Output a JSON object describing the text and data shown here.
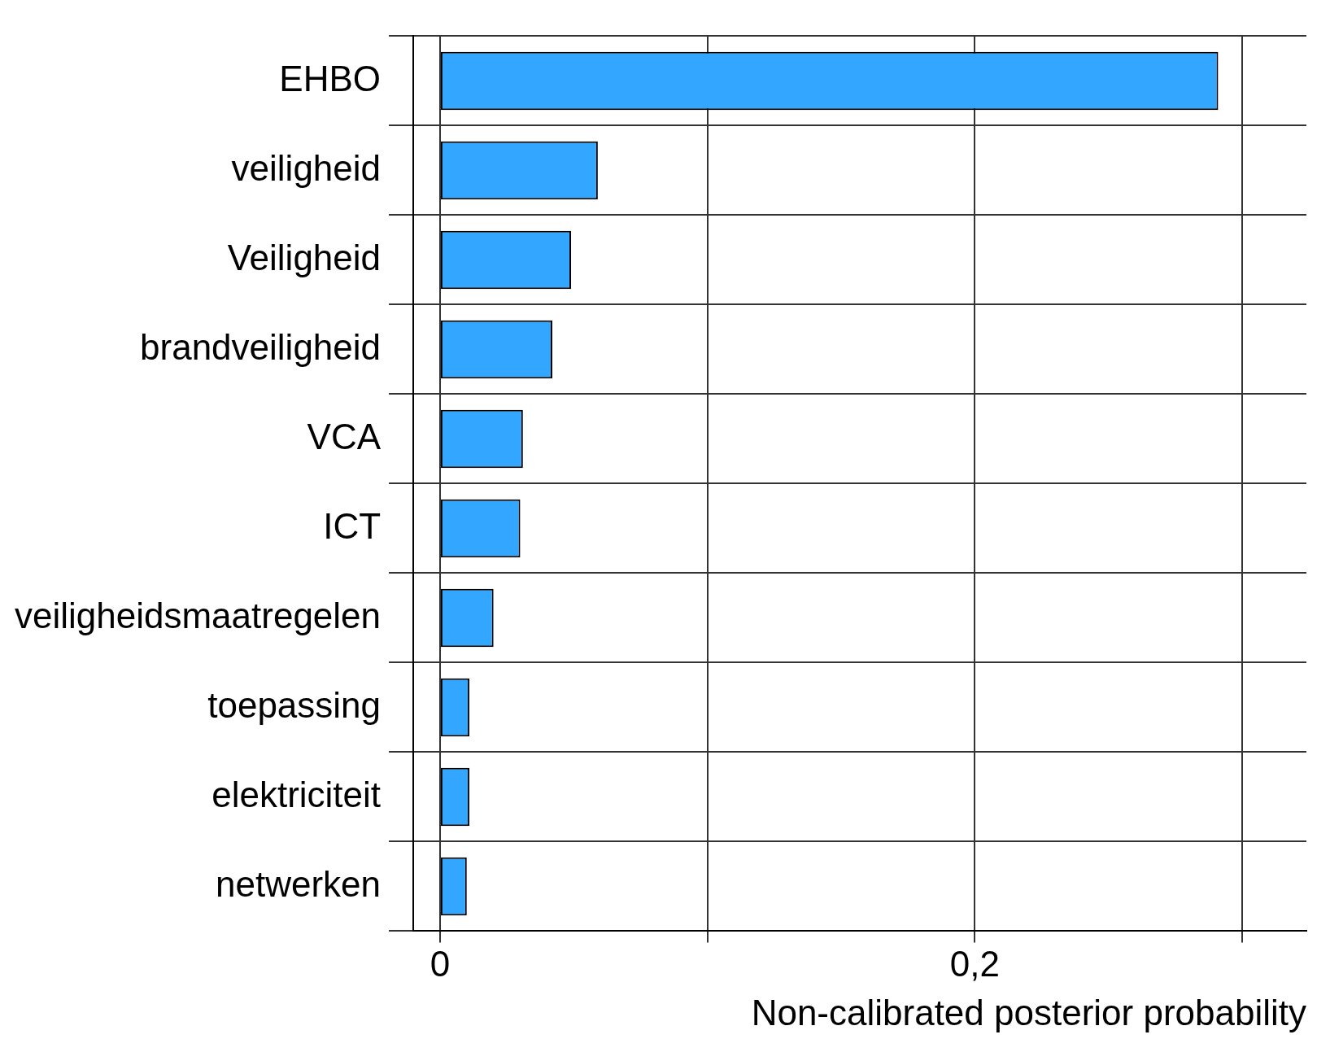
{
  "chart_data": {
    "type": "bar",
    "orientation": "horizontal",
    "xlabel": "Non-calibrated posterior probability",
    "categories": [
      "EHBO",
      "veiligheid",
      "Veiligheid",
      "brandveiligheid",
      "VCA",
      "ICT",
      "veiligheidsmaatregelen",
      "toepassing",
      "elektriciteit",
      "netwerken"
    ],
    "values": [
      0.291,
      0.059,
      0.049,
      0.042,
      0.031,
      0.03,
      0.02,
      0.011,
      0.011,
      0.01
    ],
    "color": "#33a7ff",
    "xlim": [
      -0.01,
      0.324
    ],
    "xticks": [
      0,
      {
        "value": 0.1,
        "label": null
      },
      {
        "value": 0.2,
        "label": "0,2"
      },
      {
        "value": 0.3,
        "label": null
      }
    ],
    "grid": true,
    "legend": false
  }
}
